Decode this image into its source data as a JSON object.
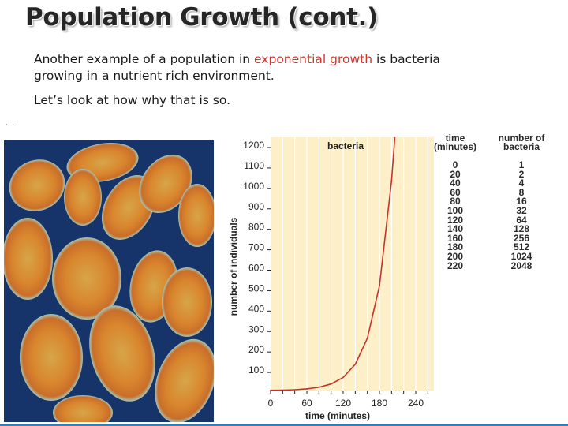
{
  "slide": {
    "title": "Population Growth (cont.)",
    "p1_a": "Another example of a population in ",
    "p1_highlight": "exponential growth",
    "p1_b": " is bacteria",
    "p1_line2": "growing in a nutrient rich environment.",
    "p2": "Let’s look at how why that is so.",
    "corner_mark": "˙ ˙"
  },
  "colors": {
    "highlight": "#d0342c",
    "chart_bg": "#fdf0c9",
    "curve": "#c8322a",
    "photo_bg": "#17346a",
    "cell_fill": "#d9862e",
    "cell_rim": "#9fd2c8"
  },
  "chart_data": {
    "type": "line",
    "title": "bacteria",
    "xlabel": "time (minutes)",
    "ylabel": "number of individuals",
    "xlim": [
      0,
      270
    ],
    "ylim": [
      0,
      1200
    ],
    "x_ticks": [
      0,
      60,
      120,
      180,
      240
    ],
    "y_ticks": [
      100,
      200,
      300,
      400,
      500,
      600,
      700,
      800,
      900,
      1000,
      1100,
      1200
    ],
    "series": [
      {
        "x": [
          0,
          20,
          40,
          60,
          80,
          100,
          120,
          140,
          160,
          180,
          200,
          220
        ],
        "values": [
          1,
          2,
          4,
          8,
          16,
          32,
          64,
          128,
          256,
          512,
          1024,
          2048
        ]
      }
    ]
  },
  "table": {
    "time_header": "time\n(minutes)",
    "count_header": "number of\nbacteria",
    "times": [
      "0",
      "20",
      "40",
      "60",
      "80",
      "100",
      "120",
      "140",
      "160",
      "180",
      "200",
      "220"
    ],
    "counts": [
      "1",
      "2",
      "4",
      "8",
      "16",
      "32",
      "64",
      "128",
      "256",
      "512",
      "1024",
      "2048"
    ]
  }
}
